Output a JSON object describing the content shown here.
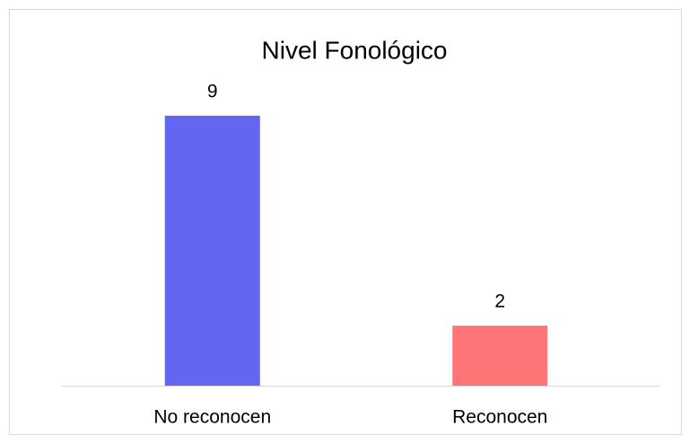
{
  "chart_data": {
    "type": "bar",
    "title": "Nivel Fonológico",
    "categories": [
      "No reconocen",
      "Reconocen"
    ],
    "values": [
      9,
      2
    ],
    "colors": [
      "#6366f0",
      "#ff7575"
    ],
    "grid": false
  }
}
